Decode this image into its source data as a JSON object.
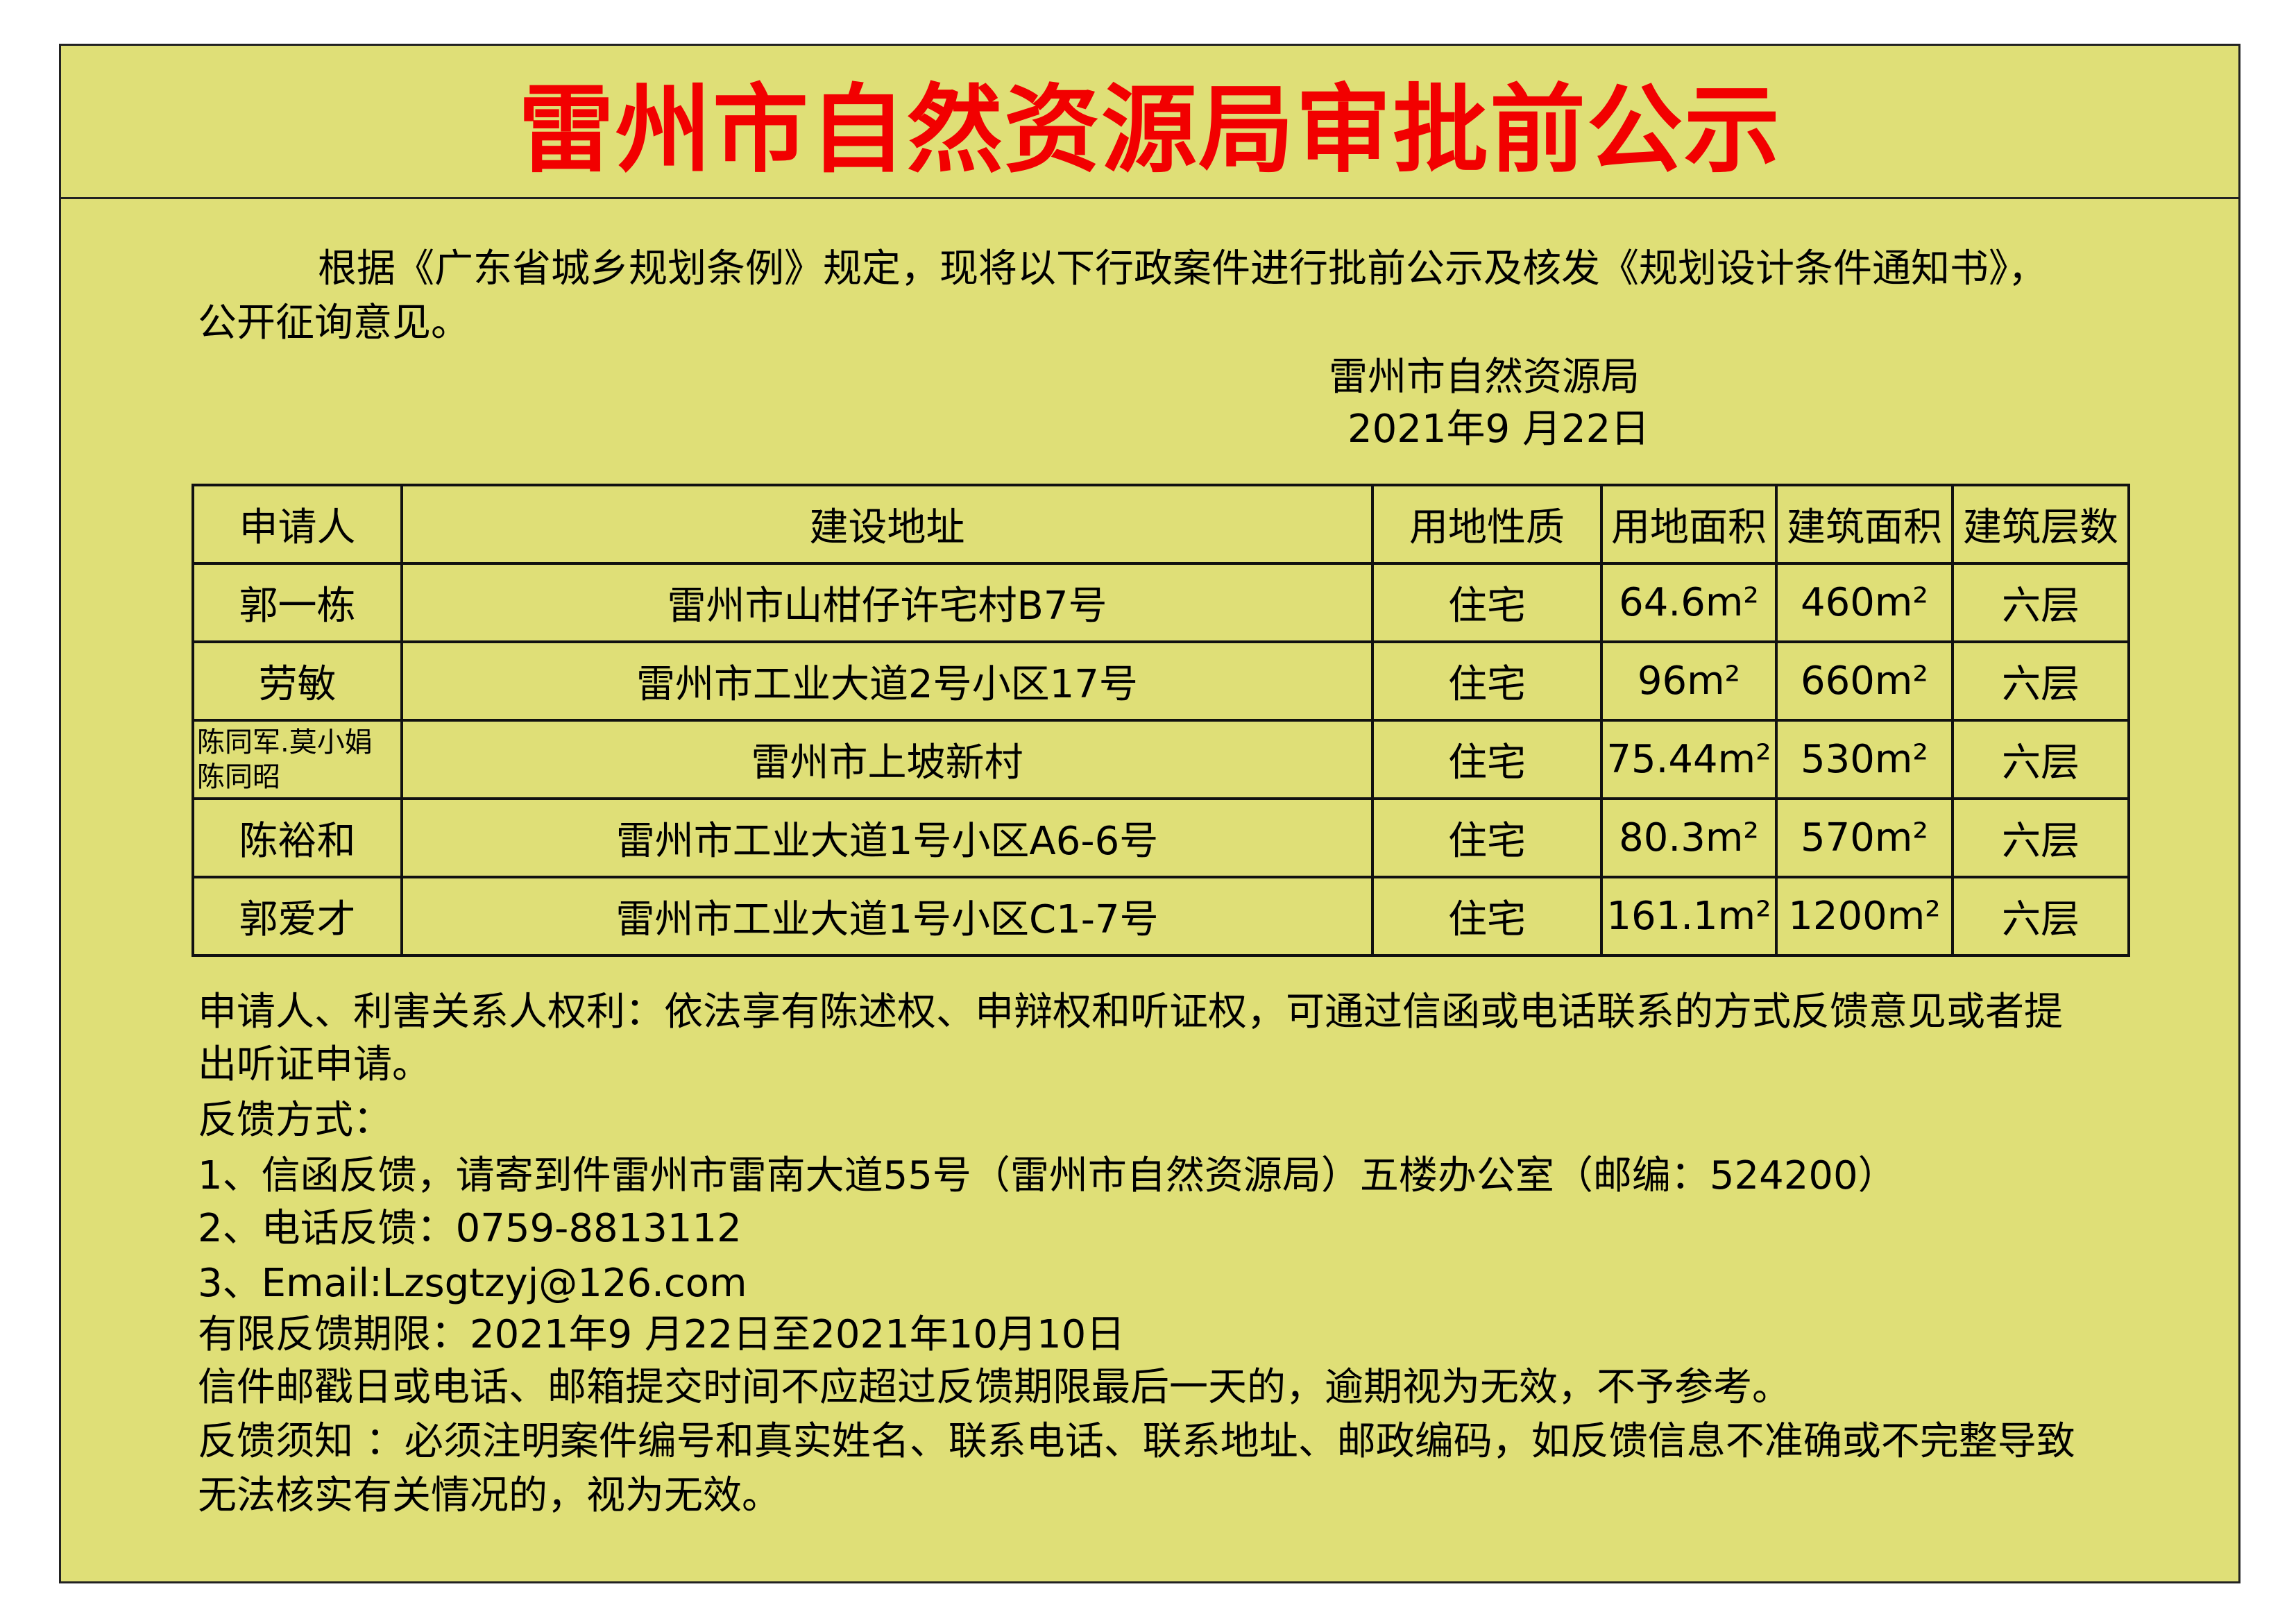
{
  "title": "雷州市自然资源局审批前公示",
  "intro": {
    "line1": "根据《广东省城乡规划条例》规定，现将以下行政案件进行批前公示及核发《规划设计条件通知书》，",
    "line2": "公开征询意见。",
    "issuer": "雷州市自然资源局",
    "date": "2021年9 月22日"
  },
  "table": {
    "headers": [
      "申请人",
      "建设地址",
      "用地性质",
      "用地面积",
      "建筑面积",
      "建筑层数"
    ],
    "rows": [
      {
        "applicant": "郭一栋",
        "address": "雷州市山柑仔许宅村B7号",
        "use": "住宅",
        "land_area": "64.6m²",
        "floor_area": "460m²",
        "floors": "六层"
      },
      {
        "applicant": "劳敏",
        "address": "雷州市工业大道2号小区17号",
        "use": "住宅",
        "land_area": "96m²",
        "floor_area": "660m²",
        "floors": "六层"
      },
      {
        "applicant": "陈同军.莫小娟",
        "applicant2": "陈同昭",
        "address": "雷州市上坡新村",
        "use": "住宅",
        "land_area": "75.44m²",
        "floor_area": "530m²",
        "floors": "六层"
      },
      {
        "applicant": "陈裕和",
        "address": "雷州市工业大道1号小区A6-6号",
        "use": "住宅",
        "land_area": "80.3m²",
        "floor_area": "570m²",
        "floors": "六层"
      },
      {
        "applicant": "郭爱才",
        "address": "雷州市工业大道1号小区C1-7号",
        "use": "住宅",
        "land_area": "161.1m²",
        "floor_area": "1200m²",
        "floors": "六层"
      }
    ]
  },
  "notice": {
    "rights_1": "申请人、利害关系人权利：依法享有陈述权、申辩权和听证权，可通过信函或电话联系的方式反馈意见或者提",
    "rights_2": "出听证申请。",
    "methods_title": "反馈方式：",
    "method_1": "1、信函反馈，请寄到件雷州市雷南大道55号（雷州市自然资源局）五楼办公室（邮编：524200）",
    "method_2": "2、电话反馈：0759-8813112",
    "method_3": "3、Email:Lzsgtzyj@126.com",
    "period": "有限反馈期限：2021年9 月22日至2021年10月10日",
    "deadline": "信件邮戳日或电话、邮箱提交时间不应超过反馈期限最后一天的，逾期视为无效，不予参考。",
    "requirement_1": "反馈须知 ：必须注明案件编号和真实姓名、联系电话、联系地址、邮政编码，如反馈信息不准确或不完整导致",
    "requirement_2": "无法核实有关情况的，视为无效。"
  },
  "colors": {
    "background": "#dfdf77",
    "title": "#f20000"
  }
}
